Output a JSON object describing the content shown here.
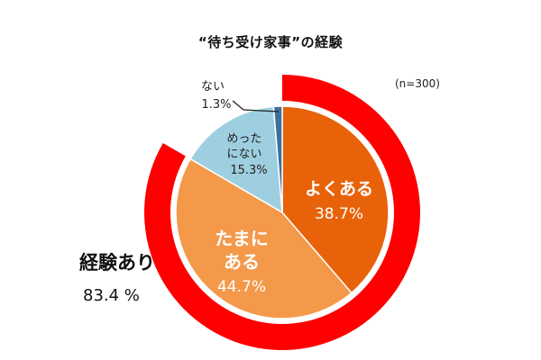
{
  "chart_data": {
    "type": "pie",
    "title": "“待ち受け家事”の経験",
    "sample_note": "(n=300)",
    "slices": [
      {
        "label": "よくある",
        "value_label": "38.7%",
        "value": 38.7,
        "color": "#E8620A"
      },
      {
        "label": "たまにある",
        "label_lines": [
          "たまに",
          "ある"
        ],
        "value_label": "44.7%",
        "value": 44.7,
        "color": "#F4994A"
      },
      {
        "label": "めったにない",
        "label_lines": [
          "めった",
          "にない"
        ],
        "value_label": "15.3%",
        "value": 15.3,
        "color": "#9ECFE0"
      },
      {
        "label": "ない",
        "value_label": "1.3%",
        "value": 1.3,
        "color": "#3D6E9C"
      }
    ],
    "highlight_group": {
      "label": "経験あり",
      "value_label": "83.4 %",
      "value": 83.4,
      "members": [
        "よくある",
        "たまにある"
      ],
      "color": "#FF0000"
    }
  }
}
